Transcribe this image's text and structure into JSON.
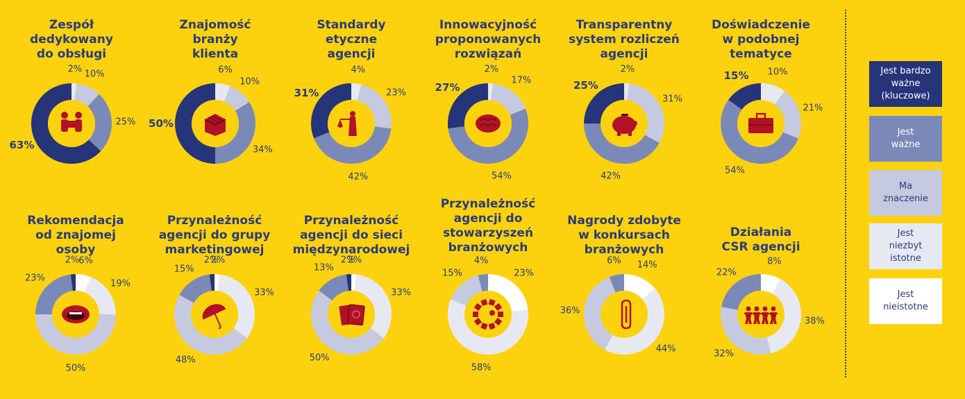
{
  "colors": {
    "background": "#fcd20f",
    "ring_inner": "#fcd20f",
    "series": [
      "#26347a",
      "#7b89b8",
      "#c5cae0",
      "#e7e9f2",
      "#ffffff"
    ],
    "icon": "#b11226"
  },
  "legend": [
    {
      "label": "Jest bardzo\nważne\n(kluczowe)",
      "color": "#26347a",
      "text_color": "#ffffff"
    },
    {
      "label": "Jest\nważne",
      "color": "#7b89b8",
      "text_color": "#ffffff"
    },
    {
      "label": "Ma\nznaczenie",
      "color": "#c5cae0",
      "text_color": "#2b3a7a"
    },
    {
      "label": "Jest\nniezbyt\nistotne",
      "color": "#e7e9f2",
      "text_color": "#2b3a7a"
    },
    {
      "label": "Jest\nnieistotne",
      "color": "#ffffff",
      "text_color": "#2b3a7a"
    }
  ],
  "chart_data": [
    {
      "type": "pie",
      "title": "Zespół\ndedykowany\ndo obsługi",
      "icon": "people-icon",
      "values": [
        63,
        25,
        10,
        2,
        0
      ],
      "labels": [
        "63%",
        "25%",
        "10%",
        "2%",
        ""
      ]
    },
    {
      "type": "pie",
      "title": "Znajomość\nbranży\nklienta",
      "icon": "cube-icon",
      "values": [
        50,
        34,
        10,
        6,
        0
      ],
      "labels": [
        "50%",
        "34%",
        "10%",
        "6%",
        ""
      ]
    },
    {
      "type": "pie",
      "title": "Standardy\netyczne\nagencji",
      "icon": "justice-icon",
      "values": [
        31,
        42,
        23,
        4,
        0
      ],
      "labels": [
        "31%",
        "42%",
        "23%",
        "4%",
        ""
      ]
    },
    {
      "type": "pie",
      "title": "Innowacyjność\nproponowanych\nrozwiązań",
      "icon": "brain-icon",
      "values": [
        27,
        54,
        17,
        2,
        0
      ],
      "labels": [
        "27%",
        "54%",
        "17%",
        "2%",
        ""
      ]
    },
    {
      "type": "pie",
      "title": "Transparentny\nsystem rozliczeń\nagencji",
      "icon": "piggy-bank-icon",
      "values": [
        25,
        42,
        31,
        2,
        0
      ],
      "labels": [
        "25%",
        "42%",
        "31%",
        "2%",
        ""
      ]
    },
    {
      "type": "pie",
      "title": "Doświadczenie\nw podobnej\ntematyce",
      "icon": "briefcase-icon",
      "values": [
        15,
        54,
        21,
        10,
        0
      ],
      "labels": [
        "15%",
        "54%",
        "21%",
        "10%",
        ""
      ]
    },
    {
      "type": "pie",
      "title": "Rekomendacja\nod znajomej\nosoby",
      "icon": "mouth-icon",
      "values": [
        2,
        23,
        50,
        19,
        6
      ],
      "labels": [
        "2%",
        "23%",
        "50%",
        "19%",
        "6%"
      ]
    },
    {
      "type": "pie",
      "title": "Przynależność\nagencji do grupy\nmarketingowej",
      "icon": "umbrella-icon",
      "values": [
        2,
        15,
        48,
        33,
        2
      ],
      "labels": [
        "2%",
        "15%",
        "48%",
        "33%",
        "2%"
      ]
    },
    {
      "type": "pie",
      "title": "Przynależność\nagencji do sieci\nmiędzynarodowej",
      "icon": "passport-icon",
      "values": [
        2,
        13,
        50,
        33,
        2
      ],
      "labels": [
        "2%",
        "13%",
        "50%",
        "33%",
        "2%"
      ]
    },
    {
      "type": "pie",
      "title": "Przynależność\nagencji do\nstowarzyszeń\nbranżowych",
      "icon": "puzzle-icon",
      "values": [
        0,
        4,
        15,
        58,
        23
      ],
      "labels": [
        "",
        "4%",
        "15%",
        "58%",
        "23%"
      ]
    },
    {
      "type": "pie",
      "title": "Nagrody zdobyte\nw konkursach\nbranżowych",
      "icon": "paperclip-icon",
      "values": [
        0,
        6,
        36,
        44,
        14
      ],
      "labels": [
        "",
        "6%",
        "36%",
        "44%",
        "14%"
      ]
    },
    {
      "type": "pie",
      "title": "Działania\nCSR agencji",
      "icon": "paper-chain-icon",
      "values": [
        0,
        22,
        32,
        38,
        8
      ],
      "labels": [
        "",
        "22%",
        "32%",
        "38%",
        "8%"
      ]
    }
  ]
}
